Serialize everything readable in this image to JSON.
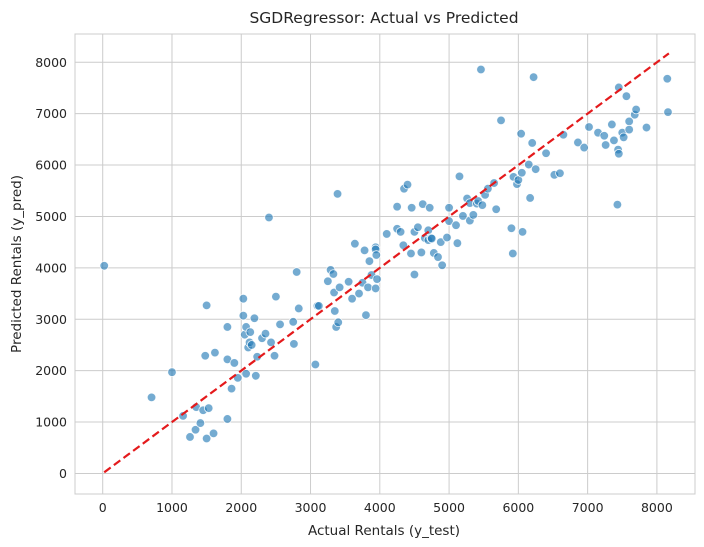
{
  "chart_data": {
    "type": "scatter",
    "title": "SGDRegressor: Actual vs Predicted",
    "xlabel": "Actual Rentals (y_test)",
    "ylabel": "Predicted Rentals (y_pred)",
    "xlim": [
      -400,
      8550
    ],
    "ylim": [
      -400,
      8550
    ],
    "xticks": [
      0,
      1000,
      2000,
      3000,
      4000,
      5000,
      6000,
      7000,
      8000
    ],
    "yticks": [
      0,
      1000,
      2000,
      3000,
      4000,
      5000,
      6000,
      7000,
      8000
    ],
    "grid": true,
    "colors": {
      "points": "#1f77b4",
      "reference_line": "#e41a1c",
      "grid": "#cccccc",
      "frame": "#cccccc"
    },
    "reference_line": {
      "from": [
        22,
        22
      ],
      "to": [
        8173,
        8173
      ],
      "style": "dashed"
    },
    "points": [
      [
        22,
        4040
      ],
      [
        705,
        1480
      ],
      [
        1000,
        1970
      ],
      [
        1160,
        1120
      ],
      [
        1260,
        710
      ],
      [
        1340,
        850
      ],
      [
        1350,
        1290
      ],
      [
        1410,
        980
      ],
      [
        1450,
        1230
      ],
      [
        1480,
        2290
      ],
      [
        1500,
        3270
      ],
      [
        1500,
        680
      ],
      [
        1530,
        1270
      ],
      [
        1600,
        780
      ],
      [
        1620,
        2350
      ],
      [
        1800,
        1060
      ],
      [
        1800,
        2850
      ],
      [
        1800,
        2220
      ],
      [
        1860,
        1650
      ],
      [
        1900,
        2150
      ],
      [
        1950,
        1860
      ],
      [
        2030,
        3400
      ],
      [
        2030,
        3070
      ],
      [
        2050,
        2700
      ],
      [
        2070,
        1940
      ],
      [
        2070,
        2850
      ],
      [
        2100,
        2450
      ],
      [
        2120,
        2550
      ],
      [
        2130,
        2750
      ],
      [
        2150,
        2500
      ],
      [
        2190,
        3020
      ],
      [
        2210,
        1900
      ],
      [
        2230,
        2270
      ],
      [
        2300,
        2630
      ],
      [
        2350,
        2720
      ],
      [
        2400,
        4980
      ],
      [
        2430,
        2550
      ],
      [
        2480,
        2290
      ],
      [
        2500,
        3440
      ],
      [
        2560,
        2900
      ],
      [
        2750,
        2950
      ],
      [
        2760,
        2520
      ],
      [
        2800,
        3920
      ],
      [
        2830,
        3210
      ],
      [
        3070,
        2120
      ],
      [
        3100,
        3260
      ],
      [
        3120,
        3260
      ],
      [
        3250,
        3740
      ],
      [
        3290,
        3960
      ],
      [
        3330,
        3880
      ],
      [
        3340,
        3520
      ],
      [
        3350,
        3160
      ],
      [
        3370,
        2850
      ],
      [
        3390,
        5440
      ],
      [
        3400,
        2940
      ],
      [
        3420,
        3620
      ],
      [
        3550,
        3730
      ],
      [
        3600,
        3400
      ],
      [
        3640,
        4470
      ],
      [
        3700,
        3500
      ],
      [
        3750,
        3710
      ],
      [
        3780,
        4340
      ],
      [
        3800,
        3080
      ],
      [
        3830,
        3620
      ],
      [
        3850,
        4130
      ],
      [
        3880,
        3860
      ],
      [
        3940,
        4400
      ],
      [
        3940,
        4360
      ],
      [
        3940,
        3600
      ],
      [
        3950,
        4250
      ],
      [
        3960,
        3780
      ],
      [
        4100,
        4660
      ],
      [
        4250,
        4760
      ],
      [
        4250,
        5190
      ],
      [
        4300,
        4700
      ],
      [
        4340,
        4440
      ],
      [
        4350,
        5540
      ],
      [
        4400,
        5620
      ],
      [
        4450,
        4280
      ],
      [
        4460,
        5170
      ],
      [
        4500,
        4700
      ],
      [
        4500,
        3870
      ],
      [
        4550,
        4790
      ],
      [
        4600,
        4300
      ],
      [
        4620,
        5240
      ],
      [
        4650,
        4580
      ],
      [
        4700,
        4730
      ],
      [
        4700,
        4540
      ],
      [
        4720,
        5170
      ],
      [
        4740,
        4580
      ],
      [
        4750,
        4570
      ],
      [
        4780,
        4290
      ],
      [
        4840,
        4210
      ],
      [
        4880,
        4500
      ],
      [
        4900,
        4050
      ],
      [
        4970,
        4590
      ],
      [
        5000,
        5170
      ],
      [
        5000,
        4910
      ],
      [
        5100,
        4830
      ],
      [
        5120,
        4480
      ],
      [
        5150,
        5780
      ],
      [
        5200,
        5010
      ],
      [
        5260,
        5350
      ],
      [
        5300,
        5260
      ],
      [
        5300,
        4920
      ],
      [
        5350,
        5030
      ],
      [
        5400,
        5250
      ],
      [
        5420,
        5300
      ],
      [
        5460,
        7860
      ],
      [
        5480,
        5220
      ],
      [
        5520,
        5420
      ],
      [
        5560,
        5540
      ],
      [
        5650,
        5650
      ],
      [
        5680,
        5140
      ],
      [
        5750,
        6870
      ],
      [
        5900,
        4770
      ],
      [
        5920,
        4280
      ],
      [
        5930,
        5770
      ],
      [
        5980,
        5630
      ],
      [
        6000,
        5710
      ],
      [
        6040,
        6610
      ],
      [
        6050,
        5850
      ],
      [
        6060,
        4700
      ],
      [
        6150,
        6010
      ],
      [
        6170,
        5360
      ],
      [
        6200,
        6430
      ],
      [
        6220,
        7710
      ],
      [
        6250,
        5920
      ],
      [
        6400,
        6230
      ],
      [
        6520,
        5810
      ],
      [
        6600,
        5840
      ],
      [
        6650,
        6590
      ],
      [
        6860,
        6440
      ],
      [
        6950,
        6340
      ],
      [
        7020,
        6740
      ],
      [
        7150,
        6630
      ],
      [
        7240,
        6570
      ],
      [
        7260,
        6390
      ],
      [
        7350,
        6790
      ],
      [
        7380,
        6480
      ],
      [
        7430,
        5230
      ],
      [
        7440,
        6300
      ],
      [
        7450,
        6220
      ],
      [
        7450,
        7510
      ],
      [
        7500,
        6630
      ],
      [
        7520,
        6540
      ],
      [
        7560,
        7340
      ],
      [
        7600,
        6850
      ],
      [
        7600,
        6690
      ],
      [
        7680,
        6980
      ],
      [
        7700,
        7080
      ],
      [
        7850,
        6730
      ],
      [
        8150,
        7680
      ],
      [
        8160,
        7030
      ]
    ]
  }
}
